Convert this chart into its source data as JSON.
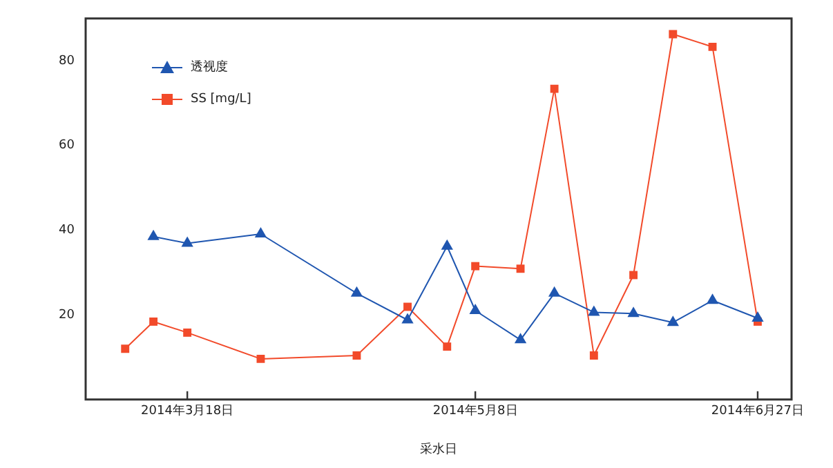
{
  "chart_data": {
    "type": "line",
    "xlabel": "采水日",
    "xlim": [
      "2014-02-28",
      "2014-07-03"
    ],
    "xticks": [
      {
        "value": "2014-03-18",
        "label": "2014年3月18日"
      },
      {
        "value": "2014-05-08",
        "label": "2014年5月8日"
      },
      {
        "value": "2014-06-27",
        "label": "2014年6月27日"
      }
    ],
    "ylim": [
      0,
      90
    ],
    "yticks": [
      20,
      40,
      60,
      80
    ],
    "grid": false,
    "legend": "top left",
    "line_style": "solid",
    "series": [
      {
        "name": "透视度",
        "color": "#1f56b0",
        "marker": "triangle",
        "x": [
          "2014-03-12",
          "2014-03-18",
          "2014-03-31",
          "2014-04-17",
          "2014-04-26",
          "2014-05-03",
          "2014-05-08",
          "2014-05-16",
          "2014-05-22",
          "2014-05-29",
          "2014-06-05",
          "2014-06-12",
          "2014-06-19",
          "2014-06-27"
        ],
        "values": [
          38.5,
          36.9,
          39.1,
          25.1,
          18.8,
          36.2,
          21.0,
          14.1,
          25.1,
          20.6,
          20.3,
          18.2,
          23.4,
          19.2
        ]
      },
      {
        "name": "SS [mg/L]",
        "color": "#f24a2a",
        "marker": "square",
        "x": [
          "2014-03-07",
          "2014-03-12",
          "2014-03-18",
          "2014-03-31",
          "2014-04-17",
          "2014-04-26",
          "2014-05-03",
          "2014-05-08",
          "2014-05-16",
          "2014-05-22",
          "2014-05-29",
          "2014-06-05",
          "2014-06-12",
          "2014-06-19",
          "2014-06-27"
        ],
        "values": [
          12.0,
          18.4,
          15.8,
          9.6,
          10.4,
          21.9,
          12.5,
          31.5,
          30.9,
          73.4,
          10.4,
          29.4,
          86.3,
          83.3,
          18.4
        ]
      }
    ]
  }
}
